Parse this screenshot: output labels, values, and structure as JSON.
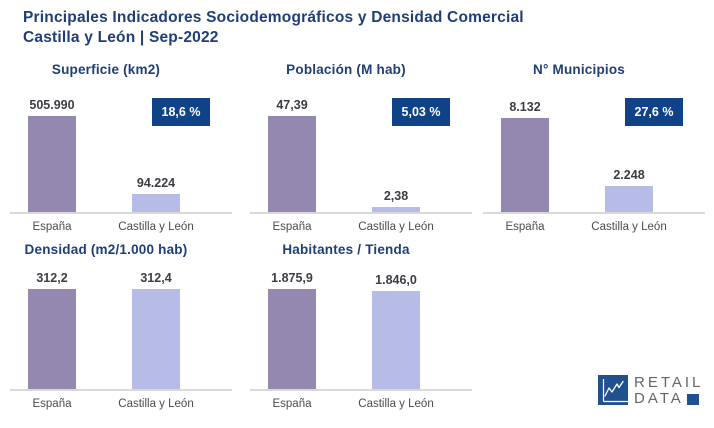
{
  "header": {
    "title_line1": "Principales Indicadores Sociodemográficos y Densidad Comercial",
    "title_line2": "Castilla y León | Sep-2022"
  },
  "colors": {
    "title_navy": "#1f3e78",
    "badge_navy": "#0f4287",
    "bar_espana": "#9488b1",
    "bar_cyl": "#b7bce6",
    "baseline_gray": "#d9d9d9",
    "value_text": "#3c3c44",
    "axis_text": "#4b4b52",
    "logo_gray": "#65656d",
    "logo_navy": "#21508f"
  },
  "chart_data": [
    {
      "type": "bar",
      "title": "Superficie (km2)",
      "categories": [
        "España",
        "Castilla y León"
      ],
      "values": [
        505990,
        94224
      ],
      "value_labels": [
        "505.990",
        "94.224"
      ],
      "badge": "18,6 %",
      "ylim": [
        0,
        505990
      ],
      "grid": false,
      "legend": false
    },
    {
      "type": "bar",
      "title": "Población (M hab)",
      "categories": [
        "España",
        "Castilla y León"
      ],
      "values": [
        47.39,
        2.38
      ],
      "value_labels": [
        "47,39",
        "2,38"
      ],
      "badge": "5,03 %",
      "ylim": [
        0,
        47.39
      ],
      "grid": false,
      "legend": false
    },
    {
      "type": "bar",
      "title": "N° Municipios",
      "categories": [
        "España",
        "Castilla y León"
      ],
      "values": [
        8132,
        2248
      ],
      "value_labels": [
        "8.132",
        "2.248"
      ],
      "badge": "27,6 %",
      "ylim": [
        0,
        8132
      ],
      "grid": false,
      "legend": false
    },
    {
      "type": "bar",
      "title": "Densidad (m2/1.000 hab)",
      "categories": [
        "España",
        "Castilla y León"
      ],
      "values": [
        312.2,
        312.4
      ],
      "value_labels": [
        "312,2",
        "312,4"
      ],
      "badge": null,
      "ylim": [
        0,
        312.4
      ],
      "grid": false,
      "legend": false
    },
    {
      "type": "bar",
      "title": "Habitantes / Tienda",
      "categories": [
        "España",
        "Castilla y León"
      ],
      "values": [
        1875.9,
        1846.0
      ],
      "value_labels": [
        "1.875,9",
        "1.846,0"
      ],
      "badge": null,
      "ylim": [
        0,
        1875.9
      ],
      "grid": false,
      "legend": false
    }
  ],
  "logo": {
    "line1": "RETAIL",
    "line2": "DATA",
    "icon": "line-chart-icon"
  }
}
